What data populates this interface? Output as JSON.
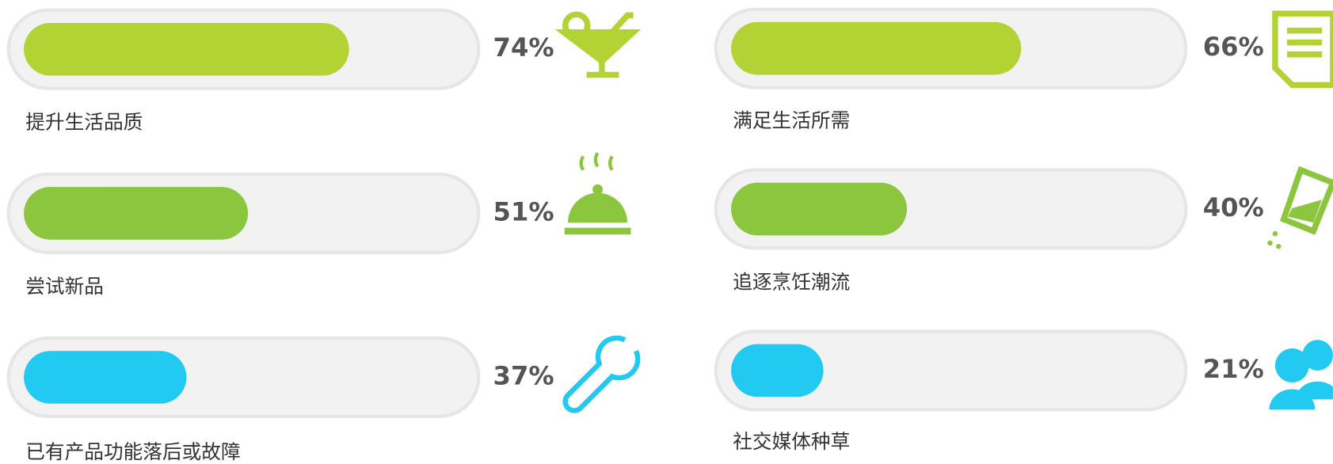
{
  "chart_data": {
    "type": "progress",
    "categories": [
      "提升生活品质",
      "满足生活所需",
      "尝试新品",
      "追逐烹饪潮流",
      "已有产品功能落后或故障",
      "社交媒体种草"
    ],
    "values": [
      74,
      66,
      51,
      40,
      37,
      21
    ],
    "value_labels": [
      "74%",
      "66%",
      "51%",
      "40%",
      "37%",
      "21%"
    ],
    "colors": [
      "#b3d335",
      "#b3d335",
      "#8cc63f",
      "#8cc63f",
      "#22c9f1",
      "#22c9f1"
    ],
    "xlim": [
      0,
      100
    ]
  }
}
